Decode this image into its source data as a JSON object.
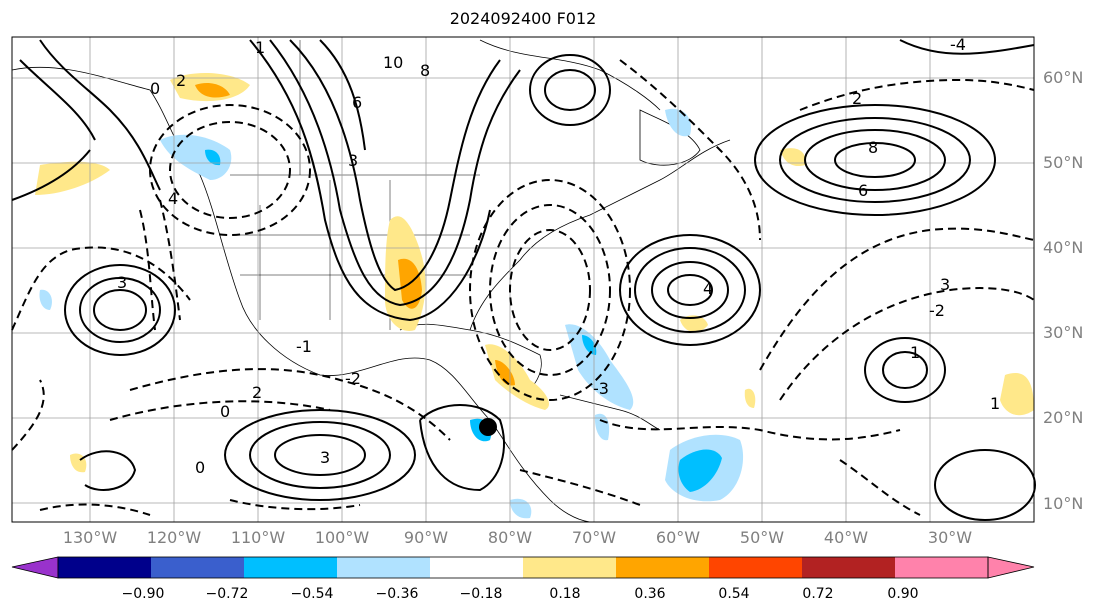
{
  "title": "2024092400 F012",
  "map": {
    "lat_labels": [
      "60°N",
      "50°N",
      "40°N",
      "30°N",
      "20°N",
      "10°N"
    ],
    "lon_labels": [
      "130°W",
      "120°W",
      "110°W",
      "100°W",
      "90°W",
      "80°W",
      "70°W",
      "60°W",
      "50°W",
      "40°W",
      "30°W"
    ],
    "lat_values": [
      60,
      50,
      40,
      30,
      20,
      10
    ],
    "lon_values": [
      -130,
      -120,
      -110,
      -100,
      -90,
      -80,
      -70,
      -60,
      -50,
      -40,
      -30
    ],
    "contour_labels": [
      "10",
      "8",
      "6",
      "3",
      "1",
      "0",
      "2",
      "4",
      "6",
      "8",
      "3",
      "1",
      "2",
      "3",
      "4",
      "3",
      "-1",
      "-2",
      "-3",
      "-4",
      "-2",
      "0",
      "0",
      "1",
      "2"
    ],
    "marker": "black-dot"
  },
  "colorbar": {
    "colors": [
      "#9932cc",
      "#00008b",
      "#3a5fcd",
      "#00bfff",
      "#b0e2ff",
      "#ffffff",
      "#ffe88a",
      "#ffa500",
      "#ff4500",
      "#b22222",
      "#ff82ab",
      "#ff82ab"
    ],
    "ticks": [
      "−0.90",
      "−0.72",
      "−0.54",
      "−0.36",
      "−0.18",
      "0.18",
      "0.36",
      "0.54",
      "0.72",
      "0.90"
    ]
  }
}
